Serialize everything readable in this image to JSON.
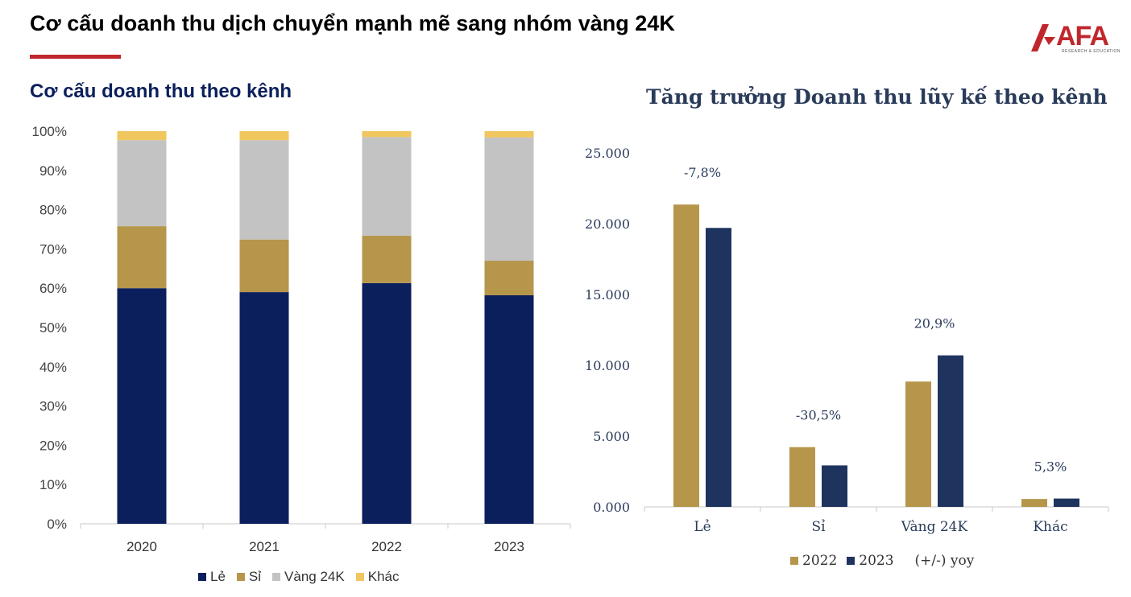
{
  "page": {
    "title": "Cơ cấu doanh thu dịch chuyển mạnh mẽ sang nhóm vàng 24K",
    "logo_text": "AFA",
    "logo_subtext": "RESEARCH & EDUCATION"
  },
  "colors": {
    "le": "#0b1f5c",
    "si": "#b5964b",
    "vang24k": "#c3c3c3",
    "khac": "#f0c65e",
    "y2022": "#b5964b",
    "y2023": "#1e335e",
    "accent": "#c0272d"
  },
  "chart_data": [
    {
      "type": "bar",
      "stacked": true,
      "title": "Cơ cấu doanh thu theo kênh",
      "categories": [
        "2020",
        "2021",
        "2022",
        "2023"
      ],
      "series": [
        {
          "name": "Lẻ",
          "values": [
            60,
            59,
            61.3,
            58.2
          ]
        },
        {
          "name": "Sỉ",
          "values": [
            15.8,
            13.4,
            12.1,
            8.8
          ]
        },
        {
          "name": "Vàng 24K",
          "values": [
            21.9,
            25.3,
            25.1,
            31.4
          ]
        },
        {
          "name": "Khác",
          "values": [
            2.3,
            2.3,
            1.5,
            1.6
          ]
        }
      ],
      "ylim": [
        0,
        100
      ],
      "yticks": [
        "0%",
        "10%",
        "20%",
        "30%",
        "40%",
        "50%",
        "60%",
        "70%",
        "80%",
        "90%",
        "100%"
      ],
      "legend": "bottom"
    },
    {
      "type": "bar",
      "title": "Tăng trưởng Doanh thu lũy kế theo kênh",
      "categories": [
        "Lẻ",
        "Sỉ",
        "Vàng 24K",
        "Khác"
      ],
      "series": [
        {
          "name": "2022",
          "values": [
            21350,
            4220,
            8850,
            560
          ]
        },
        {
          "name": "2023",
          "values": [
            19700,
            2930,
            10700,
            590
          ]
        }
      ],
      "annotations": [
        "-7,8%",
        "-30,5%",
        "20,9%",
        "5,3%"
      ],
      "ylim": [
        0,
        25000
      ],
      "yticks": [
        "0.000",
        "5.000",
        "10.000",
        "15.000",
        "20.000",
        "25.000"
      ],
      "legend": "bottom",
      "legend_note": "(+/-) yoy"
    }
  ]
}
